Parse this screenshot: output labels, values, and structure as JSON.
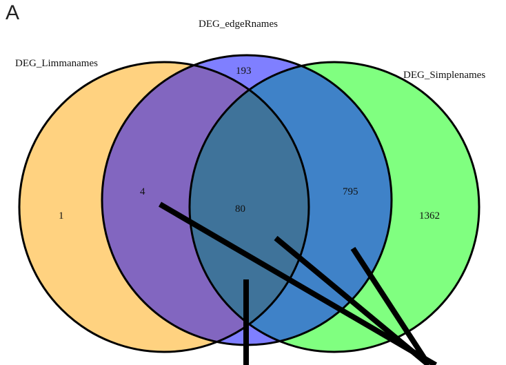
{
  "panel_label": "A",
  "sets": [
    {
      "name": "DEG_Limmanames",
      "color": "#FFD280"
    },
    {
      "name": "DEG_edgeRnames",
      "color": "#7F7FFF"
    },
    {
      "name": "DEG_Simplenames",
      "color": "#80FF80"
    }
  ],
  "regions": {
    "limma_only": "1",
    "edger_only": "193",
    "simple_only": "1362",
    "limma_edger": "4",
    "edger_simple": "795",
    "all_three": "80"
  },
  "overlap_colors": {
    "limma_edger": "#8266C0",
    "edger_simple": "#3F82C8",
    "all_three": "#3F739A",
    "outline": "#000000"
  }
}
